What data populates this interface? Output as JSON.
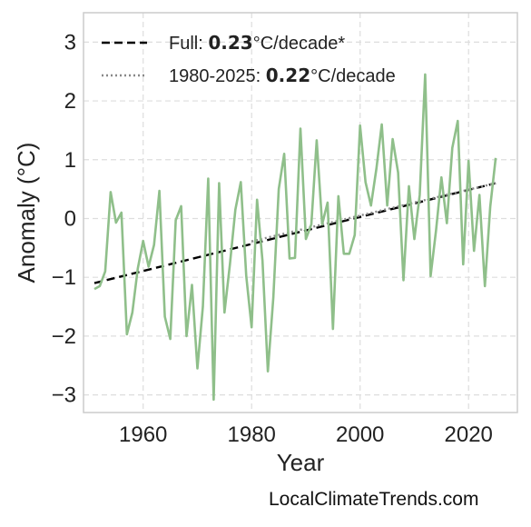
{
  "credit": "LocalClimateTrends.com",
  "chart_data": {
    "type": "line",
    "title": "",
    "xlabel": "Year",
    "ylabel": "Anomaly (°C)",
    "xlim": [
      1949,
      2029
    ],
    "ylim": [
      -3.3,
      3.5
    ],
    "xticks": [
      1960,
      1980,
      2000,
      2020
    ],
    "yticks": [
      -3,
      -2,
      -1,
      0,
      1,
      2,
      3
    ],
    "ytick_labels": [
      "−3",
      "−2",
      "−1",
      "0",
      "1",
      "2",
      "3"
    ],
    "grid": true,
    "legend_position": "top-left",
    "colors": {
      "anomaly": "#8fbf8a",
      "trend_full": "#000000",
      "trend_recent": "#888888",
      "grid": "#dddddd",
      "frame": "#cccccc"
    },
    "legend": [
      {
        "style": "dashed",
        "prefix": "Full: ",
        "value": "0.23",
        "suffix": "°C/decade*"
      },
      {
        "style": "dotted",
        "prefix": "1980-2025: ",
        "value": "0.22",
        "suffix": "°C/decade"
      }
    ],
    "series": [
      {
        "type": "line",
        "x": [
          1951,
          1952,
          1953,
          1954,
          1955,
          1956,
          1957,
          1958,
          1959,
          1960,
          1961,
          1962,
          1963,
          1964,
          1965,
          1966,
          1967,
          1968,
          1969,
          1970,
          1971,
          1972,
          1973,
          1974,
          1975,
          1976,
          1977,
          1978,
          1979,
          1980,
          1981,
          1982,
          1983,
          1984,
          1985,
          1986,
          1987,
          1988,
          1989,
          1990,
          1991,
          1992,
          1993,
          1994,
          1995,
          1996,
          1997,
          1998,
          1999,
          2000,
          2001,
          2002,
          2003,
          2004,
          2005,
          2006,
          2007,
          2008,
          2009,
          2010,
          2011,
          2012,
          2013,
          2014,
          2015,
          2016,
          2017,
          2018,
          2019,
          2020,
          2021,
          2022,
          2023,
          2024,
          2025
        ],
        "values": [
          -1.2,
          -1.15,
          -0.9,
          0.45,
          -0.07,
          0.1,
          -1.97,
          -1.6,
          -0.85,
          -0.38,
          -0.82,
          -0.45,
          0.47,
          -1.67,
          -2.05,
          -0.03,
          0.21,
          -2.0,
          -1.13,
          -2.55,
          -1.5,
          0.68,
          -3.08,
          0.6,
          -1.6,
          -0.78,
          0.15,
          0.62,
          -0.98,
          -1.85,
          0.32,
          -0.72,
          -2.6,
          -1.35,
          0.5,
          1.1,
          -0.68,
          -0.67,
          1.53,
          -0.35,
          -0.1,
          1.33,
          -0.1,
          0.27,
          -1.88,
          0.38,
          -0.6,
          -0.6,
          -0.28,
          1.58,
          0.62,
          0.22,
          0.85,
          1.6,
          0.22,
          1.35,
          0.78,
          -1.05,
          0.55,
          -0.35,
          0.4,
          2.45,
          -0.98,
          -0.2,
          0.7,
          -0.08,
          1.2,
          1.66,
          -0.78,
          0.98,
          -0.55,
          0.4,
          -1.15,
          0.2,
          1.03
        ]
      },
      {
        "type": "trend",
        "style": "dashed",
        "x": [
          1951,
          2025
        ],
        "values": [
          -1.1,
          0.6
        ]
      },
      {
        "type": "trend",
        "style": "dotted",
        "x": [
          1980,
          2025
        ],
        "values": [
          -0.39,
          0.6
        ]
      }
    ]
  }
}
